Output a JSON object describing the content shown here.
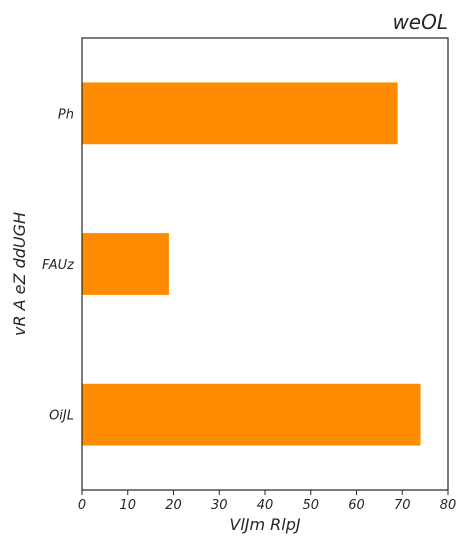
{
  "chart_data": {
    "type": "bar",
    "orientation": "horizontal",
    "title": "weOL",
    "title_position": "top-right",
    "xlabel": "VlJm RlpJ",
    "ylabel": "vR A eZ ddUGH",
    "categories": [
      "Ph",
      "FAUz",
      "OiJL"
    ],
    "values": [
      69,
      19,
      74
    ],
    "xlim": [
      0,
      80
    ],
    "xticks": [
      "0",
      "10",
      "20",
      "30",
      "40",
      "50",
      "60",
      "70",
      "80"
    ],
    "grid": false,
    "bar_color": "#ff8c00"
  }
}
